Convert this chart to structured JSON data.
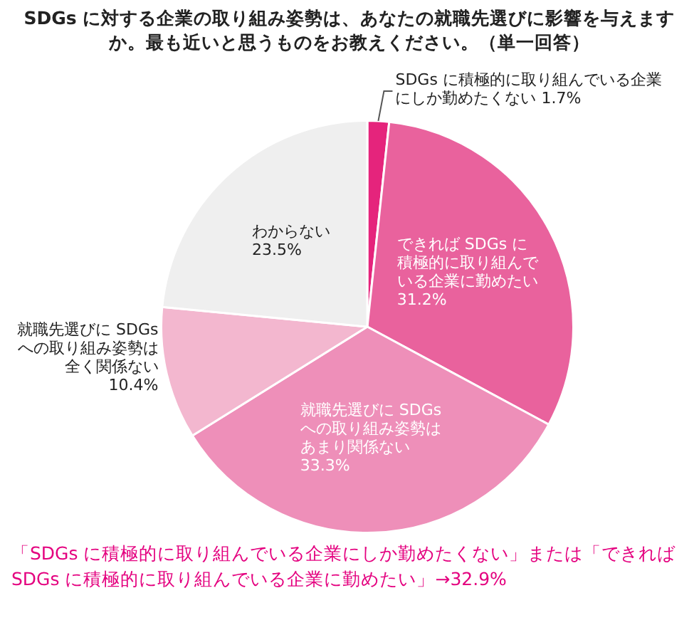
{
  "chart_data": {
    "type": "pie",
    "title": "SDGs に対する企業の取り組み姿勢は、あなたの就職先選びに影響を与えますか。最も近いと思うものをお教えください。（単一回答）",
    "categories": [
      "SDGs に積極的に取り組んでいる企業にしか勤めたくない",
      "できれば SDGs に積極的に取り組んでいる企業に勤めたい",
      "就職先選びに SDGs への取り組み姿勢はあまり関係ない",
      "就職先選びに SDGs への取り組み姿勢は全く関係ない",
      "わからない"
    ],
    "values": [
      1.7,
      31.2,
      33.3,
      10.4,
      23.5
    ],
    "value_labels": [
      "1.7%",
      "31.2%",
      "33.3%",
      "10.4%",
      "23.5%"
    ],
    "colors": [
      "#e5247c",
      "#e9629d",
      "#ee8fb9",
      "#f3b7cf",
      "#efefef"
    ],
    "legend": false,
    "annotations": [
      "「SDGs に積極的に取り組んでいる企業にしか勤めたくない」または「できれば SDGs に積極的に取り組んでいる企業に勤めたい」→32.9%"
    ]
  }
}
